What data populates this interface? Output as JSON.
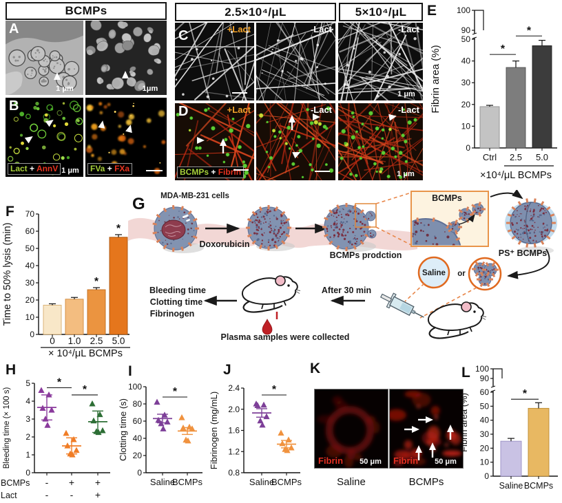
{
  "panel_ab": {
    "letter_a": "A",
    "letter_b": "B",
    "header": "BCMPs",
    "a1_scale": "1 μm",
    "a2_scale": "1μm",
    "b1_tag": {
      "green": "Lact",
      "plus": "+",
      "red": "AnnV"
    },
    "b1_scale": "1 μm",
    "b2_tag": {
      "green": "FVa",
      "plus": "+",
      "red": "FXa"
    }
  },
  "panel_cd": {
    "letter_c": "C",
    "letter_d": "D",
    "header_left": "2.5×10⁴/μL",
    "header_right": "5×10⁴/μL",
    "c1_tag": "+Lact",
    "c2_tag": "-Lact",
    "c3_tag": "-Lact",
    "c3_scale": "1 μm",
    "d1_tag": "+Lact",
    "d2_tag": "-Lact",
    "d3_tag": "-Lact",
    "d1_box": {
      "green": "BCMPs",
      "plus": "+",
      "red": "Fibrin"
    },
    "d3_scale": "1 μm"
  },
  "panel_g": {
    "letter": "G",
    "mda_label": "MDA-MB-231 cells",
    "dox_label": "Doxorubicin",
    "production_label": "BCMPs prodction",
    "inset_label": "BCMPs",
    "ps_label": "PS⁺ BCMPs",
    "saline_label": "Saline",
    "or_label": "or",
    "after_label": "After 30 min",
    "plasma_label": "Plasma samples were collected",
    "readouts": [
      "Bleeding time",
      "Clotting time",
      "Fibrinogen"
    ]
  },
  "panel_k": {
    "letter": "K",
    "fibrin_label": "Fibrin",
    "scale": "50 μm",
    "col_labels": [
      "Saline",
      "BCMPs"
    ]
  },
  "chart_data": [
    {
      "id": "E",
      "panel": "E",
      "type": "bar",
      "ylabel": "Fibrin area (%)",
      "xlabel": "×10⁴/μL BCMPs",
      "categories": [
        "Ctrl",
        "2.5",
        "5.0"
      ],
      "values": [
        19,
        37,
        47
      ],
      "errors": [
        0.6,
        3,
        2.5
      ],
      "bar_colors": [
        "#c3c3c3",
        "#7d7d7d",
        "#3c3c3c"
      ],
      "bar_strokes": [
        "#8f8f8f",
        "#4f4f4f",
        "#1f1f1f"
      ],
      "ylim": [
        0,
        50
      ],
      "yticks": [
        0,
        10,
        20,
        30,
        40,
        50
      ],
      "upper_ticks": [
        90,
        100
      ],
      "significance": [
        {
          "a": 0,
          "b": 1,
          "y": 43,
          "label": "*"
        },
        {
          "a": 1,
          "b": 2,
          "y": 51.5,
          "label": "*"
        }
      ],
      "xlabel_underline": [
        1,
        2
      ]
    },
    {
      "id": "F",
      "panel": "F",
      "type": "bar",
      "ylabel": "Time to 50% lysis (min)",
      "xlabel": "× 10⁴/μL BCMPs",
      "categories": [
        "0",
        "1.0",
        "2.5",
        "5.0"
      ],
      "values": [
        17,
        20.5,
        26,
        56.5
      ],
      "errors": [
        0.8,
        1,
        1.2,
        1.5
      ],
      "bar_colors": [
        "#f8e7c8",
        "#f3bd80",
        "#eb9440",
        "#e5761c"
      ],
      "bar_strokes": [
        "#d8ad6e",
        "#d08b3c",
        "#bf6d1d",
        "#a8540e"
      ],
      "ylim": [
        0,
        70
      ],
      "yticks": [
        0,
        10,
        20,
        30,
        40,
        50,
        60,
        70
      ],
      "star_bars": [
        2,
        3
      ],
      "xlabel_underline": [
        0,
        3
      ]
    },
    {
      "id": "H",
      "panel": "H",
      "type": "scatter",
      "ylabel": "Bleeding time (× 100 s)",
      "ylim": [
        0,
        5
      ],
      "yticks": [
        0,
        1,
        2,
        3,
        4,
        5
      ],
      "groups": [
        {
          "color": "#8a3a9c",
          "points": [
            4.6,
            4.35,
            3.6,
            3.5,
            3.0,
            2.65
          ],
          "mean": 3.65,
          "sem": 0.7
        },
        {
          "color": "#f07d26",
          "points": [
            2.2,
            1.85,
            1.5,
            1.25,
            1.05,
            1.0
          ],
          "mean": 1.5,
          "sem": 0.45
        },
        {
          "color": "#2d6e35",
          "points": [
            3.85,
            3.25,
            2.9,
            2.35,
            2.3,
            2.25
          ],
          "mean": 2.85,
          "sem": 0.6
        }
      ],
      "x_rows": [
        {
          "label": "BCMPs",
          "values": [
            "-",
            "+",
            "+"
          ]
        },
        {
          "label": "Lact",
          "values": [
            "-",
            "-",
            "+"
          ]
        }
      ],
      "significance": [
        {
          "a": 0,
          "b": 1,
          "y": 4.75,
          "label": "*"
        },
        {
          "a": 1,
          "b": 2,
          "y": 4.35,
          "label": "*"
        }
      ]
    },
    {
      "id": "I",
      "panel": "I",
      "type": "scatter",
      "ylabel": "Clotting time (s)",
      "categories": [
        "Saline",
        "BCMPs"
      ],
      "ylim": [
        0,
        100
      ],
      "yticks": [
        0,
        20,
        40,
        60,
        80,
        100
      ],
      "groups": [
        {
          "color": "#7d3f98",
          "points": [
            82,
            67,
            61,
            59,
            57,
            51
          ],
          "mean": 63,
          "sem": 5
        },
        {
          "color": "#f0923e",
          "points": [
            64,
            53,
            52,
            51,
            38,
            37
          ],
          "mean": 48.5,
          "sem": 4
        }
      ],
      "significance": [
        {
          "a": 0,
          "b": 1,
          "y": 88,
          "label": "*"
        }
      ]
    },
    {
      "id": "J",
      "panel": "J",
      "type": "scatter",
      "ylabel": "Fibrinogen (mg/mL)",
      "categories": [
        "Saline",
        "BCMPs"
      ],
      "ylim": [
        0.8,
        2.4
      ],
      "yticks": [
        0.8,
        1.2,
        1.6,
        2.0,
        2.4
      ],
      "ytick_labels": [
        "0.8",
        "1.2",
        "1.6",
        "2.0",
        "2.4"
      ],
      "groups": [
        {
          "color": "#7d3f98",
          "points": [
            2.1,
            2.08,
            2.07,
            1.86,
            1.78,
            1.7
          ],
          "mean": 1.93,
          "sem": 0.08
        },
        {
          "color": "#f0923e",
          "points": [
            1.55,
            1.42,
            1.35,
            1.27,
            1.24,
            1.22
          ],
          "mean": 1.34,
          "sem": 0.07
        }
      ],
      "significance": [
        {
          "a": 0,
          "b": 1,
          "y": 2.27,
          "label": "*"
        }
      ]
    },
    {
      "id": "L",
      "panel": "L",
      "type": "bar",
      "ylabel": "Fibrin area (%)",
      "categories": [
        "Saline",
        "BCMPs"
      ],
      "values": [
        25,
        48.5
      ],
      "errors": [
        2,
        4
      ],
      "bar_colors": [
        "#c9c2e4",
        "#e8b862"
      ],
      "bar_strokes": [
        "#9a8fc4",
        "#bb8a30"
      ],
      "ylim": [
        0,
        60
      ],
      "yticks": [
        0,
        10,
        20,
        30,
        40,
        50,
        60
      ],
      "upper_ticks": [
        90,
        100
      ],
      "significance": [
        {
          "a": 0,
          "b": 1,
          "y": 55,
          "label": "*"
        }
      ]
    }
  ]
}
